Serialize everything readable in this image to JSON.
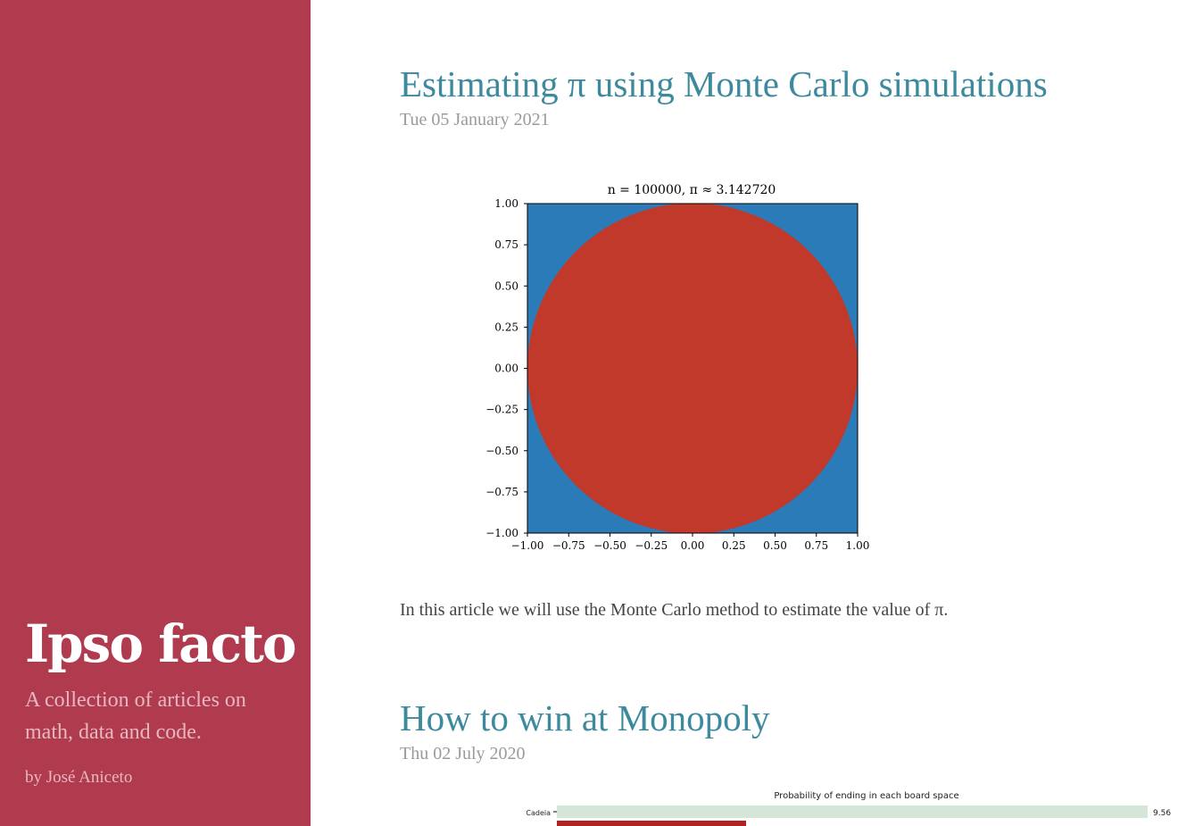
{
  "sidebar": {
    "brand": "Ipso facto",
    "tagline": "A collection of articles on math, data and code.",
    "byline": "by José Aniceto"
  },
  "posts": [
    {
      "title": "Estimating π using Monte Carlo simulations",
      "date": "Tue 05 January 2021",
      "excerpt": "In this article we will use the Monte Carlo method to estimate the value of π."
    },
    {
      "title": "How to win at Monopoly",
      "date": "Thu 02 July 2020"
    }
  ],
  "chart_data": [
    {
      "type": "scatter",
      "title": "n = 100000, π ≈ 3.142720",
      "xlim": [
        -1.0,
        1.0
      ],
      "ylim": [
        -1.0,
        1.0
      ],
      "xticks": [
        "−1.00",
        "−0.75",
        "−0.50",
        "−0.25",
        "0.00",
        "0.25",
        "0.50",
        "0.75",
        "1.00"
      ],
      "yticks": [
        "1.00",
        "0.75",
        "0.50",
        "0.25",
        "0.00",
        "−0.25",
        "−0.50",
        "−0.75",
        "−1.00"
      ],
      "n": 100000,
      "pi_estimate": 3.14272,
      "colors": {
        "outside": "#2b7bb9",
        "inside": "#c0392b"
      }
    },
    {
      "type": "bar",
      "title": "Probability of ending in each board space",
      "categories": [
        "Cadeia"
      ],
      "values": [
        9.56
      ],
      "value_labels": [
        "9.56"
      ],
      "colors": {
        "bar1": "#d5e5d8",
        "bar2": "#b22222"
      }
    }
  ]
}
